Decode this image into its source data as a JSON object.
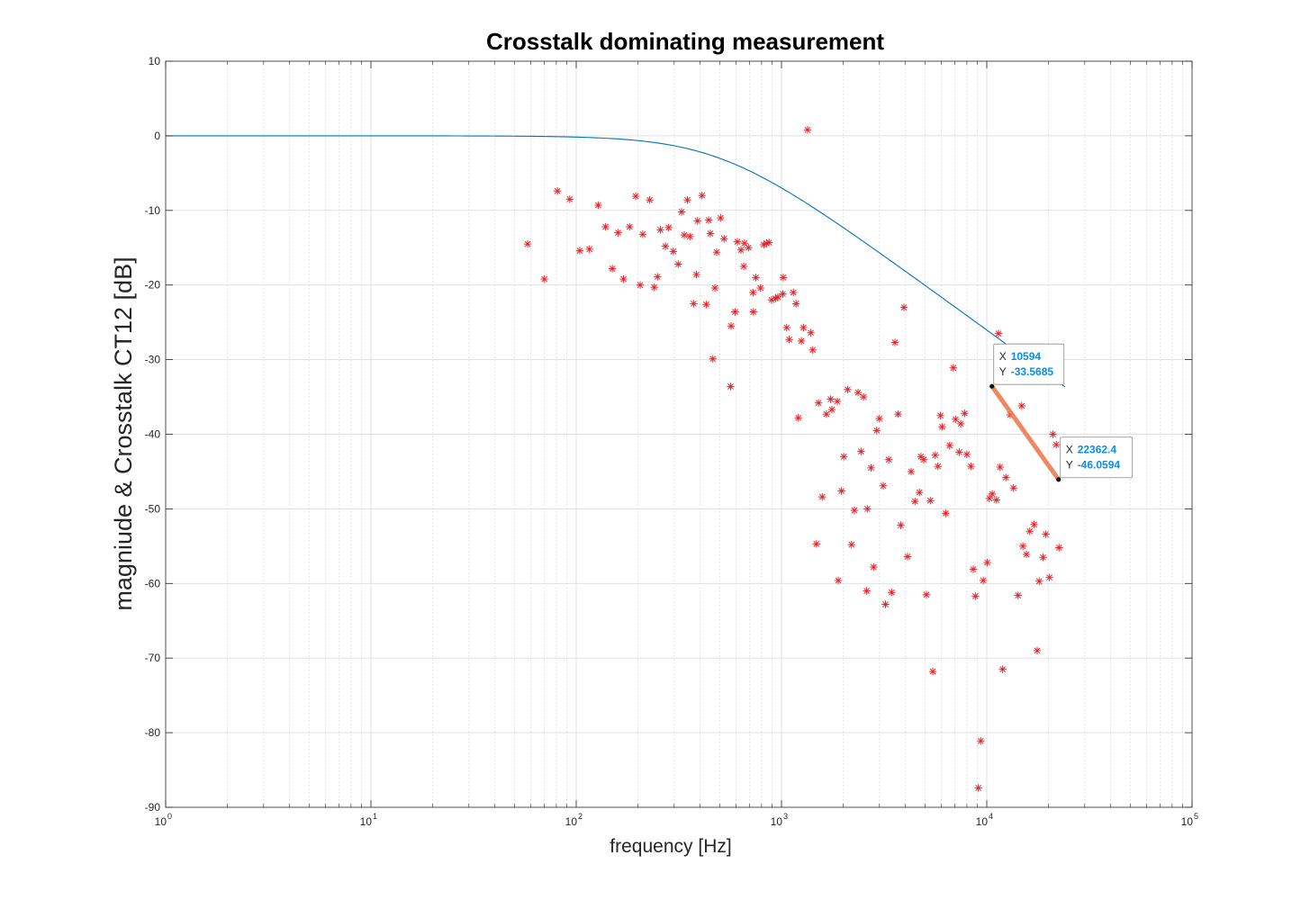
{
  "chart_data": {
    "type": "scatter",
    "title": "Crosstalk dominating measurement",
    "xlabel": "frequency [Hz]",
    "ylabel": "magniude & Crosstalk CT12 [dB]",
    "xscale": "log",
    "xlim": [
      1,
      100000
    ],
    "ylim": [
      -90,
      10
    ],
    "x_tick_exponents": [
      "0",
      "1",
      "2",
      "3",
      "4",
      "5"
    ],
    "x_tick_base": "10",
    "y_ticks": [
      "10",
      "0",
      "-10",
      "-20",
      "-30",
      "-40",
      "-50",
      "-60",
      "-70",
      "-80",
      "-90"
    ],
    "grid": true,
    "minor_grid": true,
    "colors": {
      "curve": "#0072bd",
      "markers": "#e3262b",
      "highlight": "#ee7b52",
      "tip_value": "#0c8ce6"
    },
    "curve": {
      "model": "first-order low-pass magnitude",
      "cutoff_hz": 500,
      "x_start": 1,
      "x_end": 24000
    },
    "highlight": {
      "x": [
        10594,
        22362.4
      ],
      "y": [
        -33.5685,
        -46.0594
      ]
    },
    "datatips": [
      {
        "x_label": "X",
        "y_label": "Y",
        "x_value": "10594",
        "y_value": "-33.5685"
      },
      {
        "x_label": "X",
        "y_label": "Y",
        "x_value": "22362.4",
        "y_value": "-46.0594"
      }
    ],
    "series": [
      {
        "marker": "asterisk",
        "points": [
          [
            58,
            -14.5
          ],
          [
            70,
            -19.2
          ],
          [
            81,
            -7.4
          ],
          [
            93,
            -8.5
          ],
          [
            104,
            -15.4
          ],
          [
            116,
            -15.2
          ],
          [
            128,
            -9.3
          ],
          [
            139,
            -12.2
          ],
          [
            150,
            -17.8
          ],
          [
            160,
            -13
          ],
          [
            170,
            -19.2
          ],
          [
            182,
            -12.2
          ],
          [
            195,
            -8.1
          ],
          [
            205,
            -20
          ],
          [
            211,
            -13.2
          ],
          [
            228,
            -8.6
          ],
          [
            240,
            -20.3
          ],
          [
            249,
            -18.9
          ],
          [
            257,
            -12.6
          ],
          [
            272,
            -14.8
          ],
          [
            282,
            -12.3
          ],
          [
            297,
            -15.5
          ],
          [
            314,
            -17.2
          ],
          [
            326,
            -10.2
          ],
          [
            336,
            -13.3
          ],
          [
            348,
            -8.6
          ],
          [
            358,
            -13.5
          ],
          [
            373,
            -22.5
          ],
          [
            385,
            -18.6
          ],
          [
            390,
            -11.4
          ],
          [
            410,
            -8
          ],
          [
            430,
            -22.6
          ],
          [
            442,
            -11.3
          ],
          [
            450,
            -13.1
          ],
          [
            463,
            -29.9
          ],
          [
            474,
            -20.4
          ],
          [
            483,
            -15.6
          ],
          [
            505,
            -11
          ],
          [
            525,
            -13.8
          ],
          [
            565,
            -33.6
          ],
          [
            568,
            -25.5
          ],
          [
            594,
            -23.6
          ],
          [
            610,
            -14.2
          ],
          [
            635,
            -15.3
          ],
          [
            655,
            -17.5
          ],
          [
            660,
            -14.4
          ],
          [
            690,
            -15
          ],
          [
            727,
            -21
          ],
          [
            730,
            -23.6
          ],
          [
            750,
            -19
          ],
          [
            790,
            -20.4
          ],
          [
            820,
            -14.6
          ],
          [
            845,
            -14.4
          ],
          [
            870,
            -14.3
          ],
          [
            895,
            -22
          ],
          [
            935,
            -21.8
          ],
          [
            960,
            -21.6
          ],
          [
            1015,
            -21.2
          ],
          [
            1020,
            -19
          ],
          [
            1060,
            -25.7
          ],
          [
            1090,
            -27.3
          ],
          [
            1143,
            -21
          ],
          [
            1178,
            -22.5
          ],
          [
            1208,
            -37.8
          ],
          [
            1250,
            -27.5
          ],
          [
            1280,
            -25.7
          ],
          [
            1340,
            0.8
          ],
          [
            1390,
            -26.4
          ],
          [
            1420,
            -28.7
          ],
          [
            1480,
            -54.7
          ],
          [
            1515,
            -35.8
          ],
          [
            1580,
            -48.4
          ],
          [
            1655,
            -37.3
          ],
          [
            1735,
            -35.3
          ],
          [
            1760,
            -36.7
          ],
          [
            1870,
            -35.6
          ],
          [
            1890,
            -59.6
          ],
          [
            1960,
            -47.6
          ],
          [
            2010,
            -43
          ],
          [
            2100,
            -34
          ],
          [
            2195,
            -54.8
          ],
          [
            2265,
            -50.2
          ],
          [
            2360,
            -34.4
          ],
          [
            2440,
            -42.3
          ],
          [
            2510,
            -35
          ],
          [
            2600,
            -61
          ],
          [
            2620,
            -50
          ],
          [
            2730,
            -44.5
          ],
          [
            2810,
            -57.8
          ],
          [
            2910,
            -39.5
          ],
          [
            3000,
            -37.9
          ],
          [
            3130,
            -46.9
          ],
          [
            3210,
            -62.8
          ],
          [
            3330,
            -43.4
          ],
          [
            3440,
            -61.2
          ],
          [
            3570,
            -27.7
          ],
          [
            3700,
            -37.3
          ],
          [
            3810,
            -52.2
          ],
          [
            3950,
            -23
          ],
          [
            4110,
            -56.4
          ],
          [
            4280,
            -45
          ],
          [
            4470,
            -49
          ],
          [
            4700,
            -47.8
          ],
          [
            4780,
            -43
          ],
          [
            4930,
            -43.4
          ],
          [
            5080,
            -61.5
          ],
          [
            5310,
            -48.9
          ],
          [
            5460,
            -71.8
          ],
          [
            5610,
            -42.8
          ],
          [
            5780,
            -44.3
          ],
          [
            5950,
            -37.5
          ],
          [
            6060,
            -39
          ],
          [
            6310,
            -50.6
          ],
          [
            6590,
            -41.5
          ],
          [
            6870,
            -31.1
          ],
          [
            7050,
            -38
          ],
          [
            7340,
            -42.4
          ],
          [
            7470,
            -38.6
          ],
          [
            7800,
            -37.2
          ],
          [
            8000,
            -42.7
          ],
          [
            8370,
            -44.3
          ],
          [
            8600,
            -58.1
          ],
          [
            8800,
            -61.7
          ],
          [
            9100,
            -87.4
          ],
          [
            9340,
            -81.1
          ],
          [
            9620,
            -59.6
          ],
          [
            10060,
            -57.2
          ],
          [
            10300,
            -48.6
          ],
          [
            10630,
            -48
          ],
          [
            11150,
            -48.8
          ],
          [
            11400,
            -26.5
          ],
          [
            11600,
            -44.4
          ],
          [
            11950,
            -71.5
          ],
          [
            12400,
            -45.8
          ],
          [
            13000,
            -37.4
          ],
          [
            13500,
            -47.2
          ],
          [
            14200,
            -61.6
          ],
          [
            14800,
            -36.2
          ],
          [
            15000,
            -55
          ],
          [
            15600,
            -56.1
          ],
          [
            16200,
            -53
          ],
          [
            17000,
            -52.1
          ],
          [
            17600,
            -69
          ],
          [
            18000,
            -59.7
          ],
          [
            18800,
            -56.5
          ],
          [
            19400,
            -53.4
          ],
          [
            20200,
            -59.2
          ],
          [
            21000,
            -40
          ],
          [
            21800,
            -41.4
          ],
          [
            22500,
            -55.2
          ]
        ]
      }
    ]
  }
}
